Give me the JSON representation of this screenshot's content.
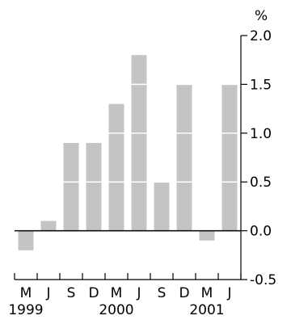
{
  "chart_data": {
    "type": "bar",
    "categories": [
      "M",
      "J",
      "S",
      "D",
      "M",
      "J",
      "S",
      "D",
      "M",
      "J"
    ],
    "year_labels": [
      {
        "label": "1999",
        "category_index": 0
      },
      {
        "label": "2000",
        "category_index": 4
      },
      {
        "label": "2001",
        "category_index": 8
      }
    ],
    "values": [
      -0.2,
      0.1,
      0.9,
      0.9,
      1.3,
      1.8,
      0.5,
      1.5,
      -0.1,
      1.5
    ],
    "ylabel": "%",
    "ylim": [
      -0.5,
      2.0
    ],
    "yticks": [
      "2.0",
      "1.5",
      "1.0",
      "0.5",
      "0.0",
      "-0.5"
    ],
    "ytick_values": [
      2.0,
      1.5,
      1.0,
      0.5,
      0.0,
      -0.5
    ],
    "y_axis_position": "right",
    "grid": "white lines across bars at each y tick",
    "colors": {
      "bar": "#c4c4c4",
      "axis": "#000000",
      "grid": "#ffffff"
    }
  }
}
